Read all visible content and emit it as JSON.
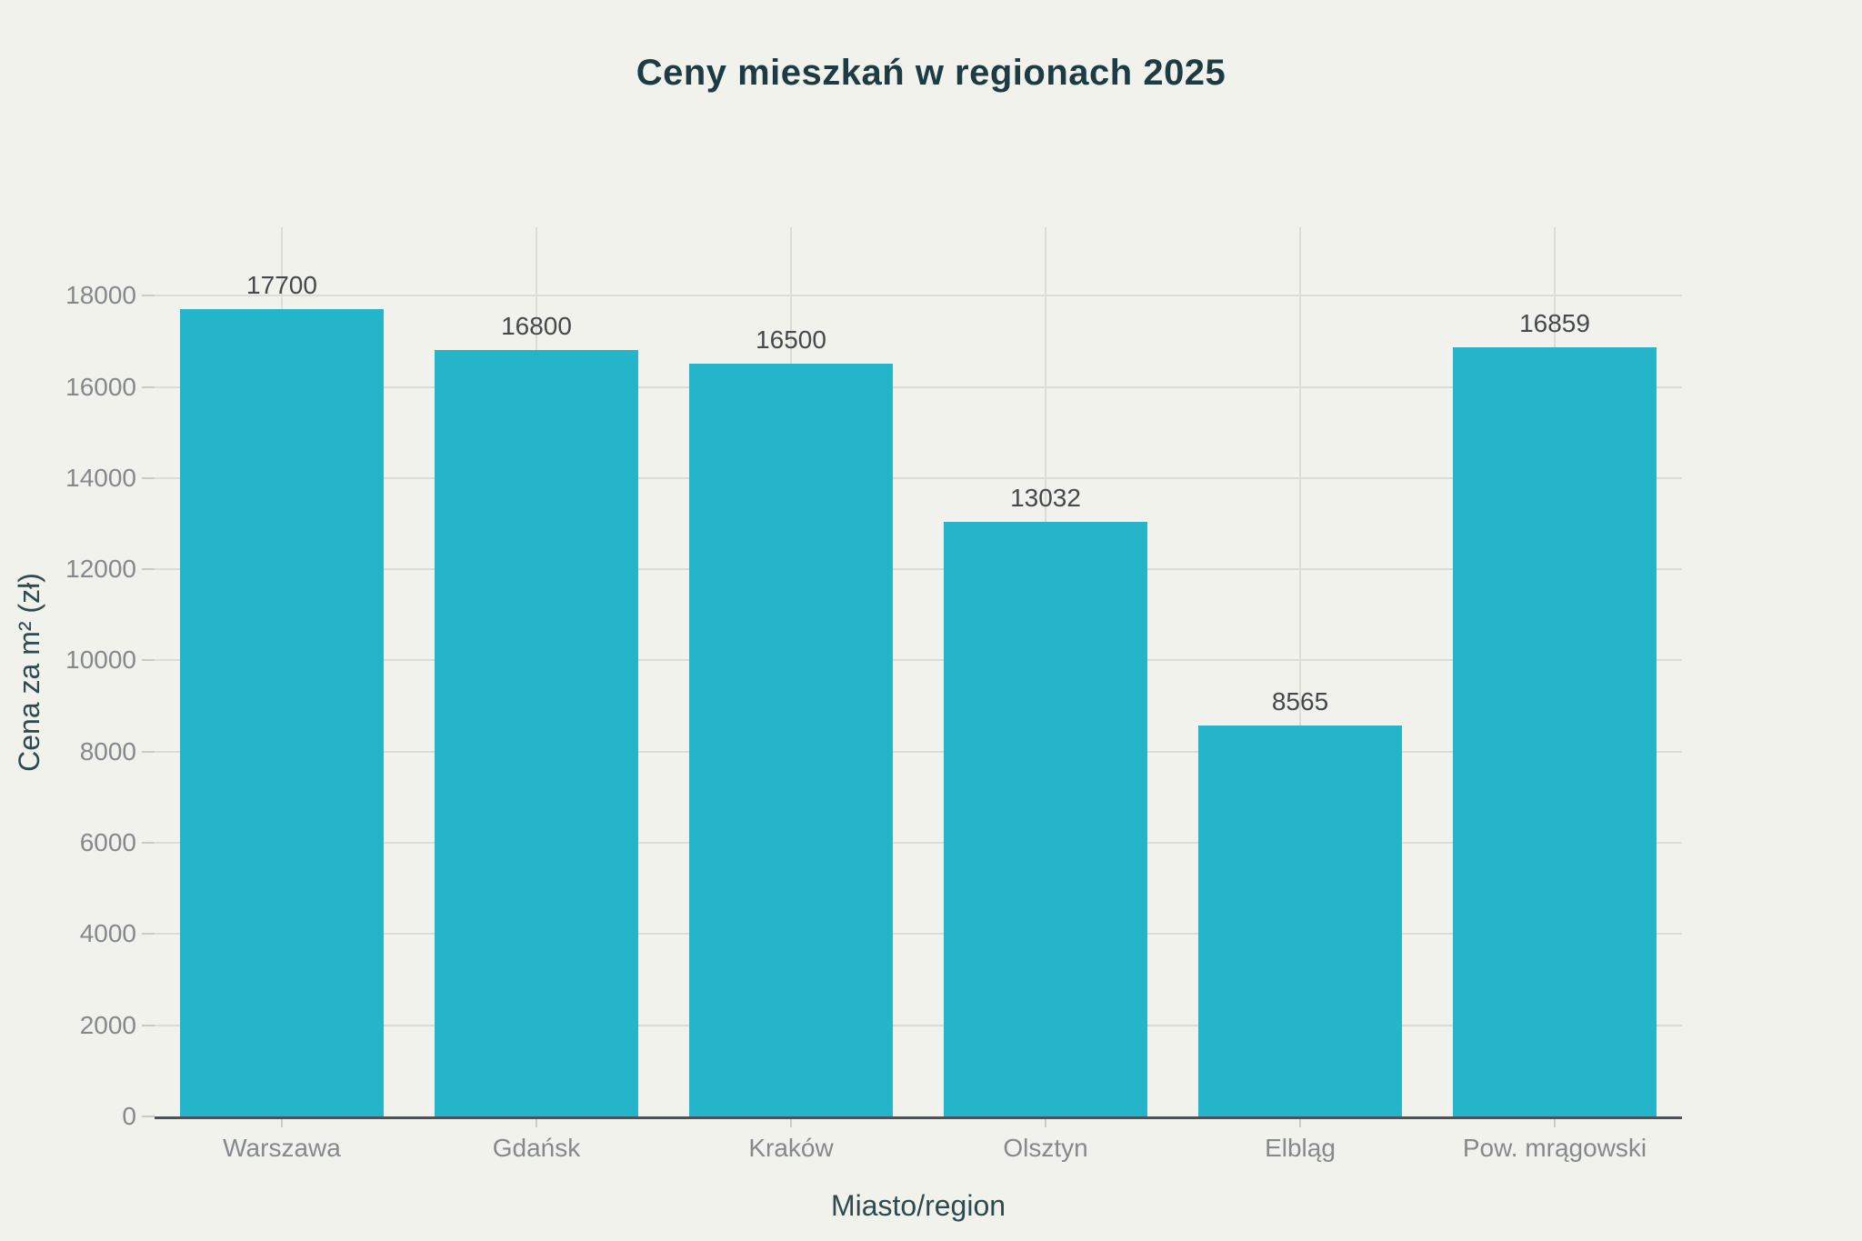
{
  "chart_data": {
    "type": "bar",
    "title": "Ceny mieszkań w regionach 2025",
    "xlabel": "Miasto/region",
    "ylabel": "Cena za m² (zł)",
    "categories": [
      "Warszawa",
      "Gdańsk",
      "Kraków",
      "Olsztyn",
      "Elbląg",
      "Pow. mrągowski"
    ],
    "values": [
      17700,
      16800,
      16500,
      13032,
      8565,
      16859
    ],
    "value_labels": [
      "17700",
      "16800",
      "16500",
      "13032",
      "8565",
      "16859"
    ],
    "yticks": [
      0,
      2000,
      4000,
      6000,
      8000,
      10000,
      12000,
      14000,
      16000,
      18000
    ],
    "ylim": [
      0,
      19500
    ],
    "bar_width_fraction": 0.8,
    "grid": true,
    "legend": "none",
    "colors": {
      "background": "#F1F2EC",
      "bar": "#25B5CB",
      "gridline": "#DCDDD5",
      "axis_line": "#4E5254",
      "tick_mark": "#C9CCC5",
      "tick_label": "#86898B",
      "value_label": "#45494C",
      "title": "#1D3B43",
      "axis_title": "#2C4A4F"
    }
  }
}
